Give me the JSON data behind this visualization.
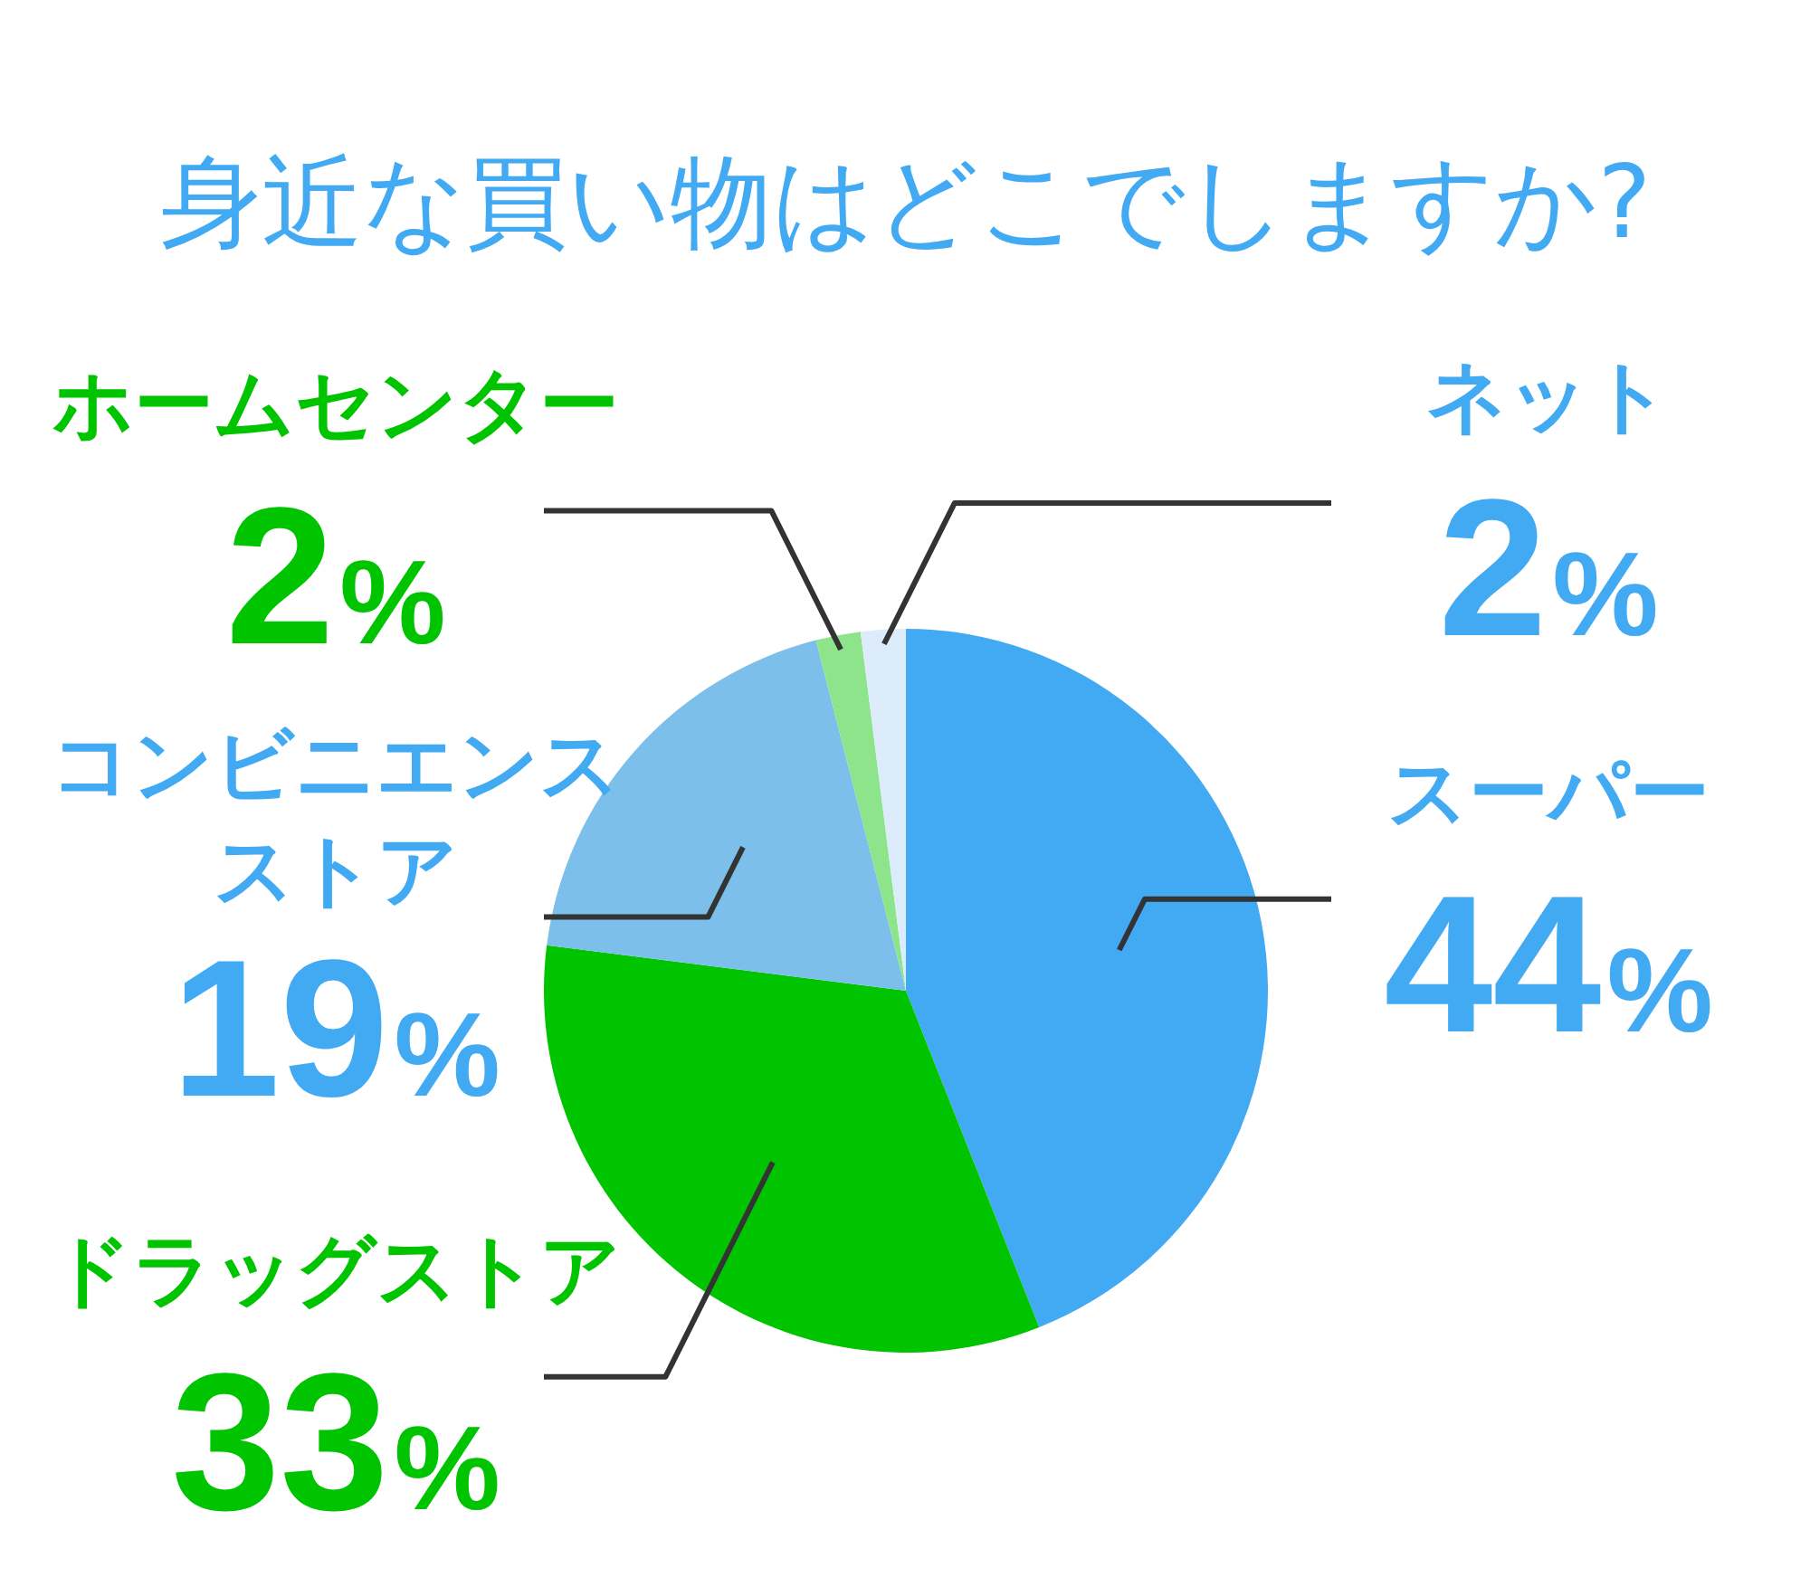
{
  "chart_data": {
    "type": "pie",
    "title": "身近な買い物はどこでしますか?",
    "categories": [
      "スーパー",
      "ドラッグストア",
      "コンビニエンスストア",
      "ホームセンター",
      "ネット"
    ],
    "values": [
      44,
      33,
      19,
      2,
      2
    ],
    "colors": [
      "#42a9f3",
      "#00c400",
      "#7bbfea",
      "#8ee48a",
      "#dcecfa"
    ],
    "value_labels": [
      "44%",
      "33%",
      "19%",
      "2%",
      "2%"
    ]
  }
}
